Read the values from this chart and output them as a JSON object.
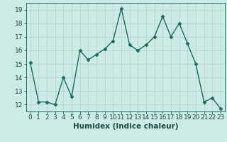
{
  "x": [
    0,
    1,
    2,
    3,
    4,
    5,
    6,
    7,
    8,
    9,
    10,
    11,
    12,
    13,
    14,
    15,
    16,
    17,
    18,
    19,
    20,
    21,
    22,
    23
  ],
  "y": [
    15.1,
    12.2,
    12.2,
    12.0,
    14.0,
    12.6,
    16.0,
    15.3,
    15.7,
    16.1,
    16.7,
    19.1,
    16.4,
    16.0,
    16.4,
    17.0,
    18.5,
    17.0,
    18.0,
    16.5,
    15.0,
    12.2,
    12.5,
    11.7
  ],
  "line_color": "#1a6b5a",
  "marker": "D",
  "marker_size": 2.5,
  "bg_color": "#cceae6",
  "grid_color": "#aed4ce",
  "axis_color": "#1a6b5a",
  "xlabel": "Humidex (Indice chaleur)",
  "ylim": [
    11.5,
    19.5
  ],
  "xlim": [
    -0.5,
    23.5
  ],
  "yticks": [
    12,
    13,
    14,
    15,
    16,
    17,
    18,
    19
  ],
  "xtick_labels": [
    "0",
    "1",
    "2",
    "3",
    "4",
    "5",
    "6",
    "7",
    "8",
    "9",
    "10",
    "11",
    "12",
    "13",
    "14",
    "15",
    "16",
    "17",
    "18",
    "19",
    "20",
    "21",
    "22",
    "23"
  ],
  "xlabel_fontsize": 7.5,
  "tick_fontsize": 6.5,
  "label_color": "#1a4a40",
  "linewidth": 1.0
}
